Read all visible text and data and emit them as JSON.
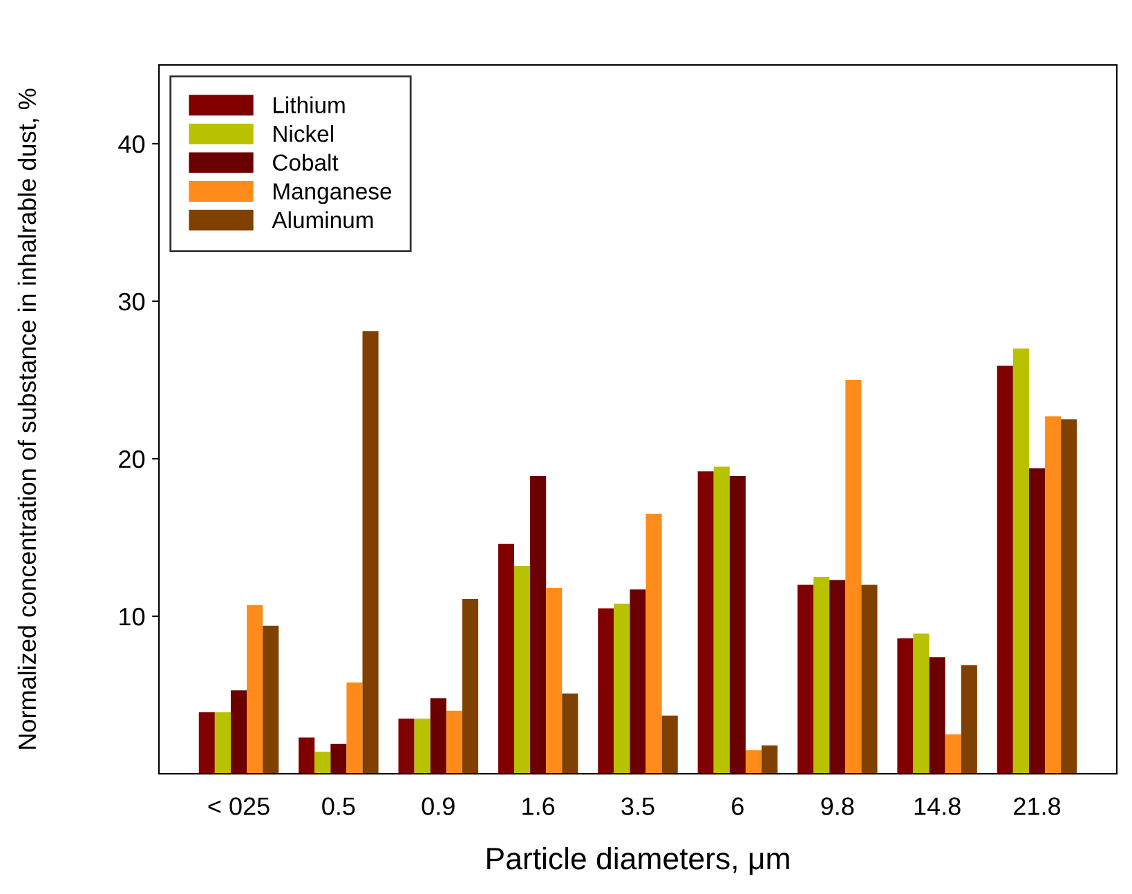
{
  "chart_data": {
    "type": "bar",
    "xlabel": "Particle diameters, μm",
    "ylabel": "Normalized concentration of substance in inhalrable dust, %",
    "categories": [
      "< 025",
      "0.5",
      "0.9",
      "1.6",
      "3.5",
      "6",
      "9.8",
      "14.8",
      "21.8"
    ],
    "series": [
      {
        "name": "Lithium",
        "color": "#800000",
        "values": [
          3.9,
          2.3,
          3.5,
          14.6,
          10.5,
          19.2,
          12.0,
          8.6,
          25.9
        ]
      },
      {
        "name": "Nickel",
        "color": "#b8c200",
        "values": [
          3.9,
          1.4,
          3.5,
          13.2,
          10.8,
          19.5,
          12.5,
          8.9,
          27.0
        ]
      },
      {
        "name": "Cobalt",
        "color": "#6b0000",
        "values": [
          5.3,
          1.9,
          4.8,
          18.9,
          11.7,
          18.9,
          12.3,
          7.4,
          19.4
        ]
      },
      {
        "name": "Manganese",
        "color": "#ff8c1a",
        "values": [
          10.7,
          5.8,
          4.0,
          11.8,
          16.5,
          1.5,
          25.0,
          2.5,
          22.7
        ]
      },
      {
        "name": "Aluminum",
        "color": "#804000",
        "values": [
          9.4,
          28.1,
          11.1,
          5.1,
          3.7,
          1.8,
          12.0,
          6.9,
          22.5
        ]
      }
    ],
    "ylim": [
      0,
      45
    ],
    "yticks": [
      10,
      20,
      30,
      40
    ],
    "grid": false,
    "legend": "top left"
  }
}
